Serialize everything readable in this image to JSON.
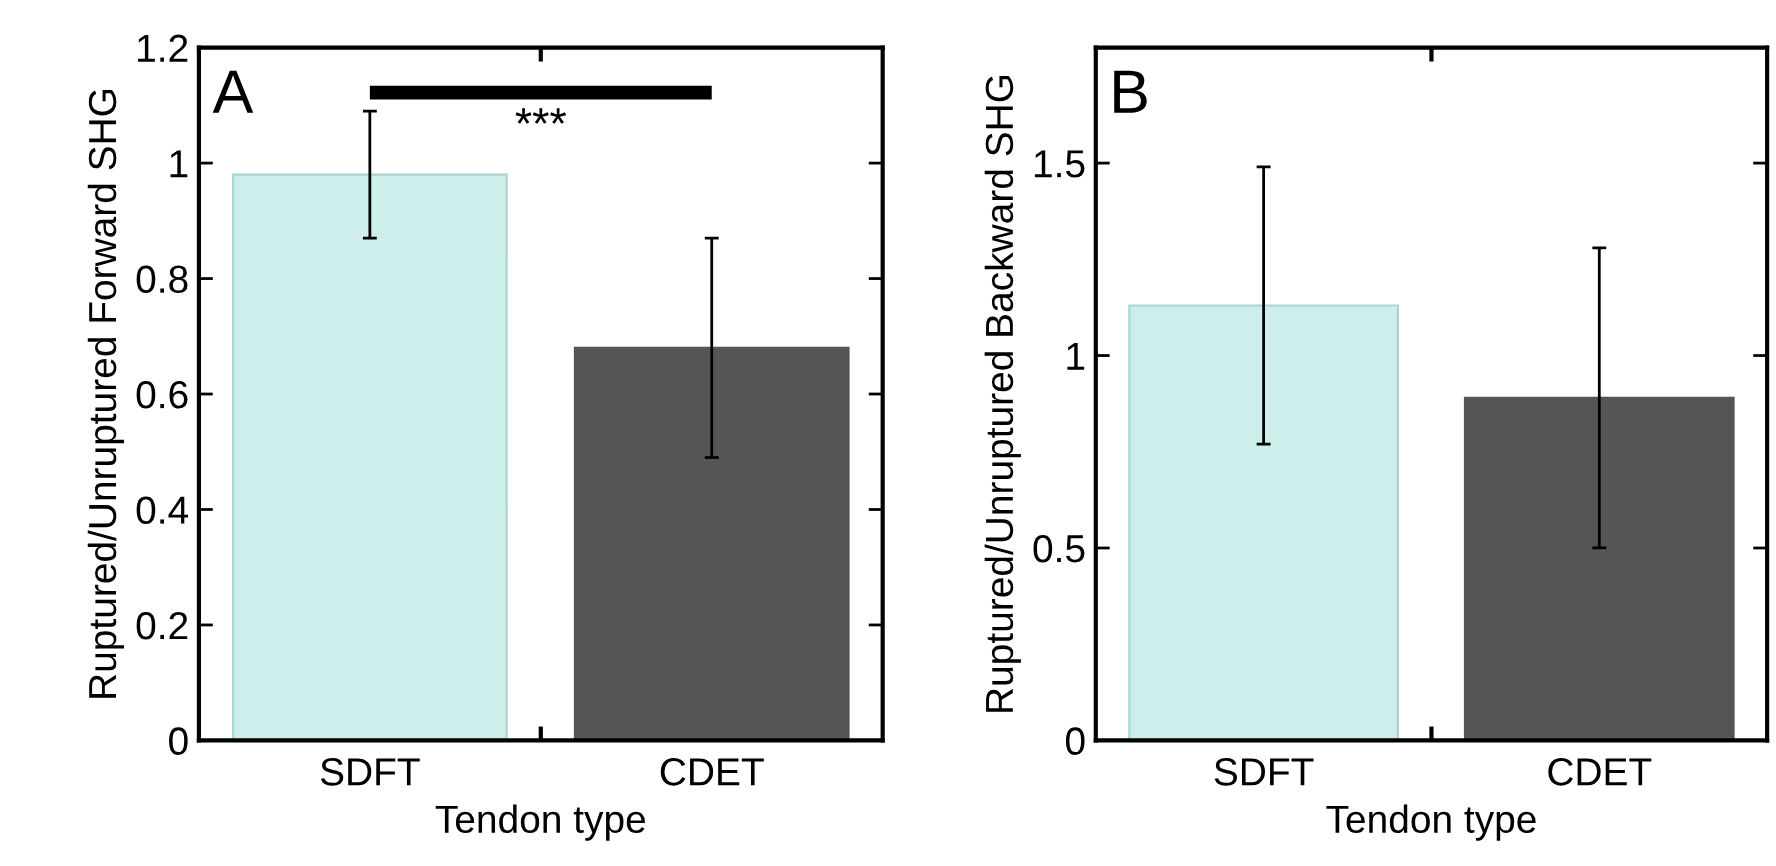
{
  "chart_data": [
    {
      "type": "bar",
      "xlabel": "Tendon type",
      "ylabel": "Ruptured/Unruptured Forward SHG",
      "categories": [
        "SDFT",
        "CDET"
      ],
      "values": [
        0.98,
        0.68
      ],
      "colors": [
        "#cdeeeb",
        "#555557"
      ],
      "errors": [
        [
          0.87,
          1.09
        ],
        [
          0.49,
          0.87
        ]
      ],
      "ylim": [
        0,
        1.2
      ],
      "yticks": [
        0,
        0.2,
        0.4,
        0.6,
        0.8,
        1,
        1.2
      ],
      "grid": false,
      "annotations": [
        "A",
        "***"
      ]
    },
    {
      "type": "bar",
      "xlabel": "Tendon type",
      "ylabel": "Ruptured/Unruptured Backward SHG",
      "categories": [
        "SDFT",
        "CDET"
      ],
      "values": [
        1.13,
        0.89
      ],
      "colors": [
        "#cdeeeb",
        "#555557"
      ],
      "errors": [
        [
          0.77,
          1.49
        ],
        [
          0.5,
          1.28
        ]
      ],
      "ylim": [
        0,
        1.8
      ],
      "yticks": [
        0,
        0.5,
        1,
        1.5
      ],
      "grid": false,
      "annotations": [
        "B"
      ]
    }
  ]
}
